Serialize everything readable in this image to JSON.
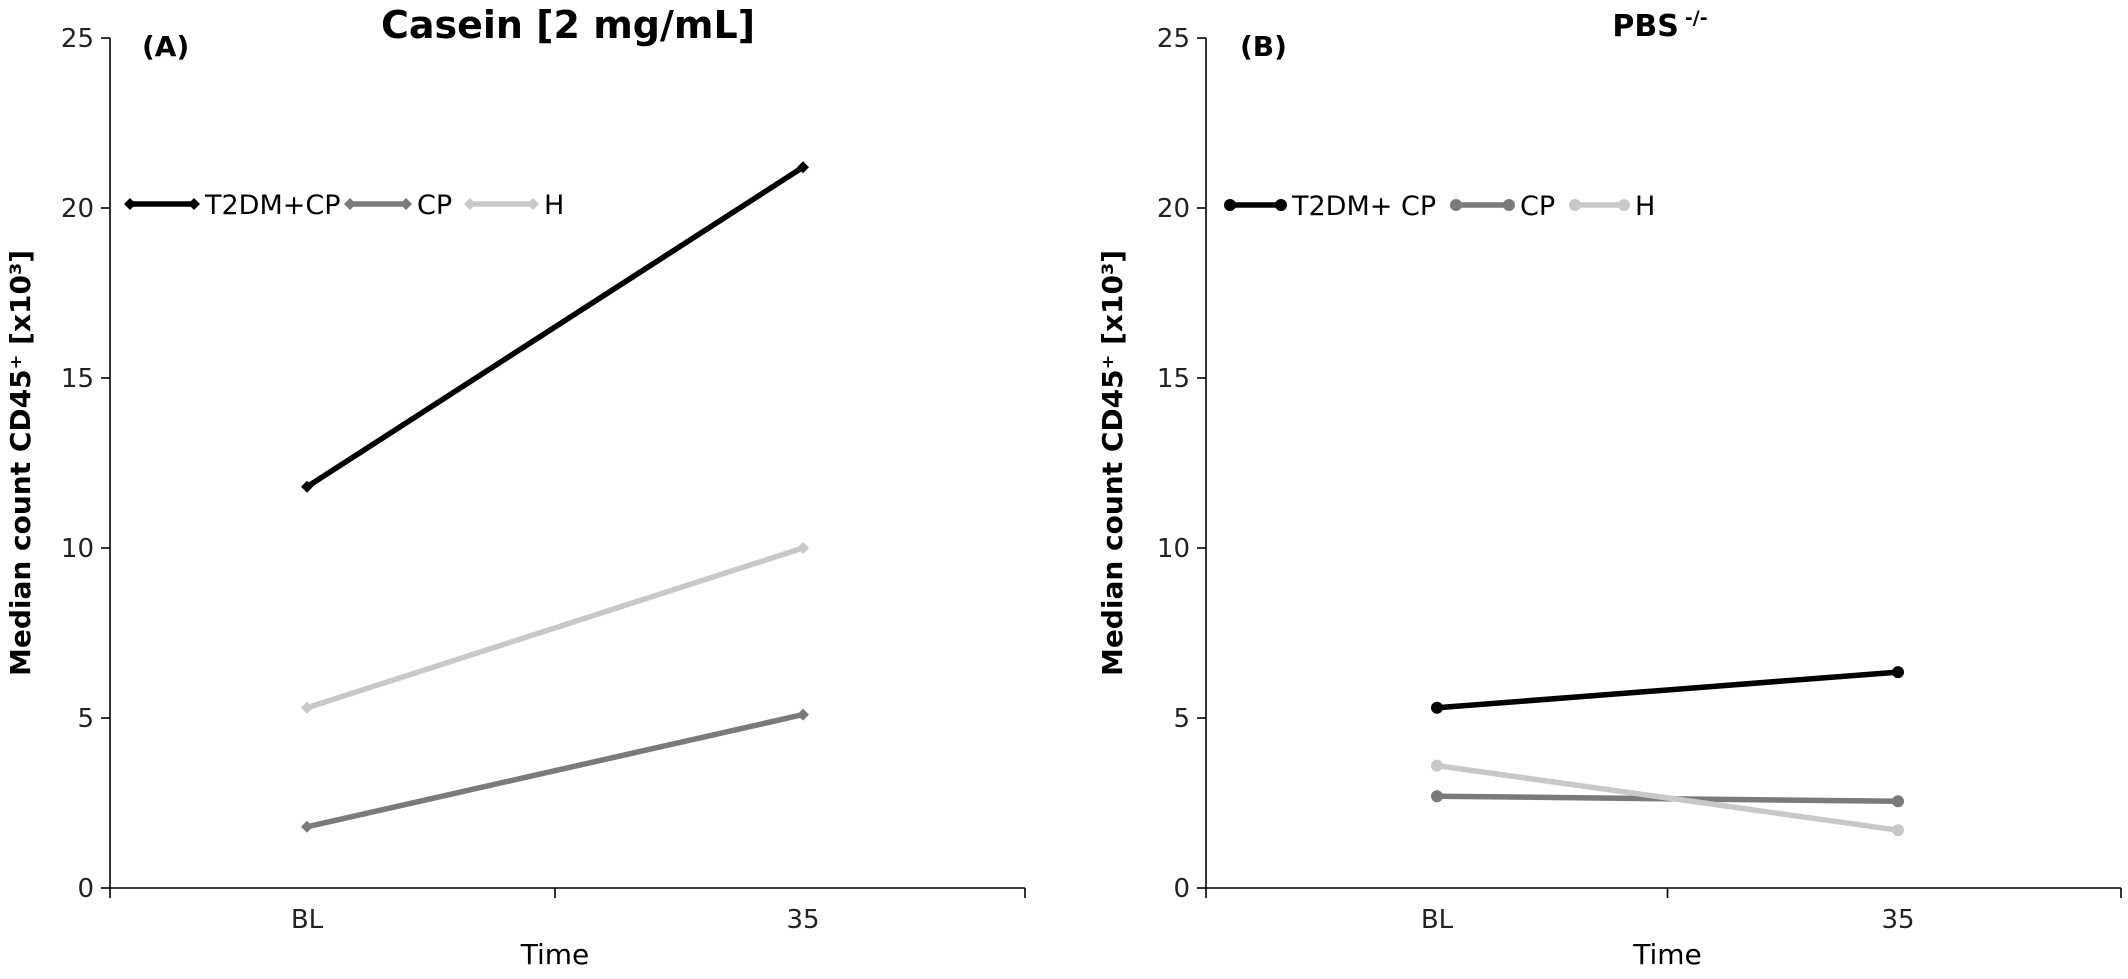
{
  "chart_data": [
    {
      "type": "line",
      "panel_label": "(A)",
      "title": "Casein [2 mg/mL]",
      "title_superscript": "",
      "xlabel": "Time",
      "ylabel": "Median count CD45⁺ [x10³]",
      "categories": [
        "BL",
        "35"
      ],
      "ylim": [
        0,
        25
      ],
      "yticks": [
        "0",
        "5",
        "10",
        "15",
        "20",
        "25"
      ],
      "grid": false,
      "legend": "top-left",
      "marker": "diamond",
      "series": [
        {
          "name": "T2DM+CP",
          "values": [
            11.8,
            21.2
          ],
          "color": "#000000"
        },
        {
          "name": "CP",
          "values": [
            1.8,
            5.1
          ],
          "color": "#7a7a7a"
        },
        {
          "name": "H",
          "values": [
            5.3,
            10.0
          ],
          "color": "#c8c8c8"
        }
      ]
    },
    {
      "type": "line",
      "panel_label": "(B)",
      "title": "PBS",
      "title_superscript": "-/-",
      "xlabel": "Time",
      "ylabel": "Median count CD45⁺ [x10³]",
      "categories": [
        "BL",
        "35"
      ],
      "ylim": [
        0,
        25
      ],
      "yticks": [
        "0",
        "5",
        "10",
        "15",
        "20",
        "25"
      ],
      "grid": false,
      "legend": "top-left",
      "marker": "circle",
      "series": [
        {
          "name": "T2DM+ CP",
          "values": [
            5.3,
            6.35
          ],
          "color": "#000000"
        },
        {
          "name": "CP",
          "values": [
            2.7,
            2.55
          ],
          "color": "#7a7a7a"
        },
        {
          "name": "H",
          "values": [
            3.6,
            1.7
          ],
          "color": "#c8c8c8"
        }
      ]
    }
  ]
}
